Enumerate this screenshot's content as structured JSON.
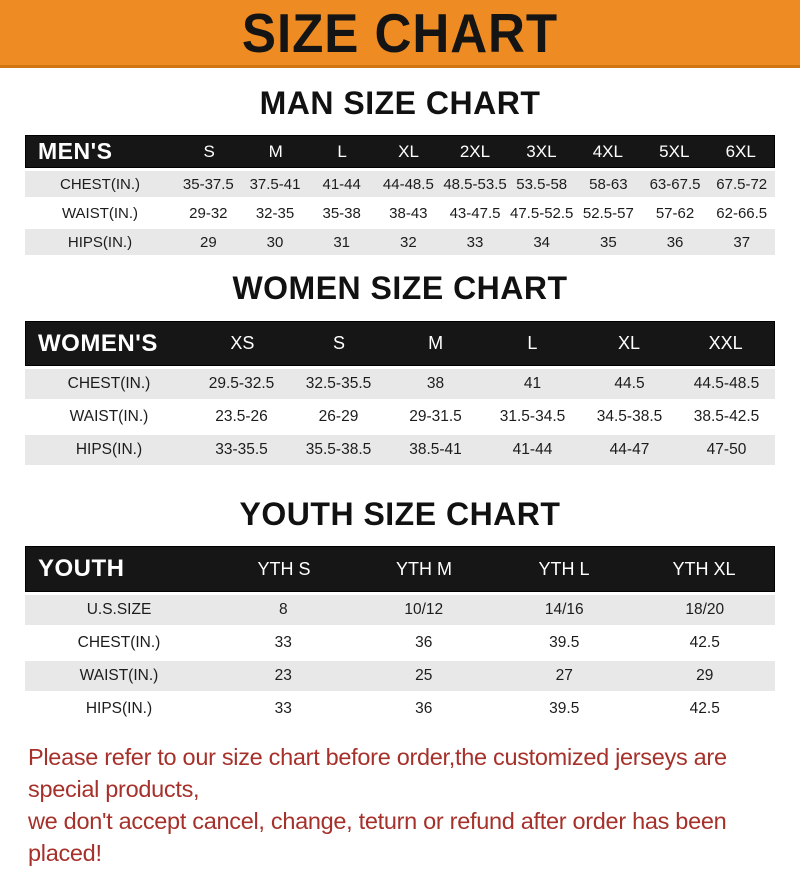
{
  "banner": {
    "title": "SIZE CHART"
  },
  "sections": [
    {
      "heading": "MAN SIZE CHART",
      "table": {
        "header": {
          "label": "MEN'S",
          "columns": [
            "S",
            "M",
            "L",
            "XL",
            "2XL",
            "3XL",
            "4XL",
            "5XL",
            "6XL"
          ]
        },
        "rows": [
          {
            "label": "CHEST(IN.)",
            "values": [
              "35-37.5",
              "37.5-41",
              "41-44",
              "44-48.5",
              "48.5-53.5",
              "53.5-58",
              "58-63",
              "63-67.5",
              "67.5-72"
            ]
          },
          {
            "label": "WAIST(IN.)",
            "values": [
              "29-32",
              "32-35",
              "35-38",
              "38-43",
              "43-47.5",
              "47.5-52.5",
              "52.5-57",
              "57-62",
              "62-66.5"
            ]
          },
          {
            "label": "HIPS(IN.)",
            "values": [
              "29",
              "30",
              "31",
              "32",
              "33",
              "34",
              "35",
              "36",
              "37"
            ]
          }
        ]
      }
    },
    {
      "heading": "WOMEN SIZE CHART",
      "table": {
        "header": {
          "label": "WOMEN'S",
          "columns": [
            "XS",
            "S",
            "M",
            "L",
            "XL",
            "XXL"
          ]
        },
        "rows": [
          {
            "label": "CHEST(IN.)",
            "values": [
              "29.5-32.5",
              "32.5-35.5",
              "38",
              "41",
              "44.5",
              "44.5-48.5"
            ]
          },
          {
            "label": "WAIST(IN.)",
            "values": [
              "23.5-26",
              "26-29",
              "29-31.5",
              "31.5-34.5",
              "34.5-38.5",
              "38.5-42.5"
            ]
          },
          {
            "label": "HIPS(IN.)",
            "values": [
              "33-35.5",
              "35.5-38.5",
              "38.5-41",
              "41-44",
              "44-47",
              "47-50"
            ]
          }
        ]
      }
    },
    {
      "heading": "YOUTH SIZE CHART",
      "table": {
        "header": {
          "label": "YOUTH",
          "columns": [
            "YTH S",
            "YTH M",
            "YTH L",
            "YTH XL"
          ]
        },
        "rows": [
          {
            "label": "U.S.SIZE",
            "values": [
              "8",
              "10/12",
              "14/16",
              "18/20"
            ]
          },
          {
            "label": "CHEST(IN.)",
            "values": [
              "33",
              "36",
              "39.5",
              "42.5"
            ]
          },
          {
            "label": "WAIST(IN.)",
            "values": [
              "23",
              "25",
              "27",
              "29"
            ]
          },
          {
            "label": "HIPS(IN.)",
            "values": [
              "33",
              "36",
              "39.5",
              "42.5"
            ]
          }
        ]
      }
    }
  ],
  "footer": {
    "lines": [
      "Please refer to our size chart before order,the customized jerseys are special products,",
      "we don't accept cancel, change, teturn or refund after order has been placed!"
    ]
  },
  "colors": {
    "banner_orange": "#EE8B22",
    "table_header_black": "#161616",
    "row_stripe_gray": "#E8E8E8",
    "footer_red": "#A6302A"
  }
}
